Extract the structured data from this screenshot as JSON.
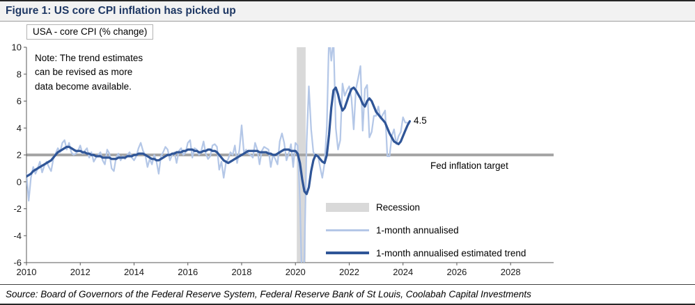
{
  "header": {
    "title": "Figure 1: US core CPI inflation has picked up"
  },
  "footer": {
    "source": "Source: Board of Governors of the Federal Reserve System, Federal Reserve Bank of St Louis, Coolabah Capital Investments"
  },
  "chart_data": {
    "type": "line",
    "title": "USA - core CPI (% change)",
    "note": "Note: The trend estimates\ncan be revised as more\ndata become available.",
    "end_label": "4.5",
    "x_axis": {
      "min": 2010,
      "max": 2029.6,
      "ticks": [
        2010,
        2012,
        2014,
        2016,
        2018,
        2020,
        2022,
        2024,
        2026,
        2028
      ]
    },
    "y_axis": {
      "min": -6,
      "max": 10,
      "ticks": [
        -6,
        -4,
        -2,
        0,
        2,
        4,
        6,
        8,
        10
      ]
    },
    "target_line": {
      "value": 2,
      "label": "Fed inflation target",
      "color": "#a6a6a6"
    },
    "recession": {
      "label": "Recession",
      "from": 2020.05,
      "to": 2020.38,
      "color": "#d9d9d9"
    },
    "legend": {
      "position": "inside-bottom-center",
      "items": [
        "Recession",
        "1-month annualised",
        "1-month annualised estimated trend"
      ]
    },
    "series": [
      {
        "name": "1-month annualised",
        "color": "#b4c7e7",
        "width": 2.25,
        "start": 2010.0,
        "step_months": 1,
        "values": [
          0.6,
          -1.4,
          0.3,
          1.1,
          0.6,
          1.0,
          1.5,
          0.7,
          1.2,
          1.5,
          1.1,
          0.8,
          1.7,
          2.1,
          2.5,
          2.2,
          2.9,
          3.1,
          2.4,
          2.9,
          2.2,
          2.0,
          2.1,
          2.3,
          2.7,
          2.1,
          2.3,
          2.5,
          1.8,
          2.2,
          1.5,
          1.8,
          2.0,
          2.2,
          1.6,
          1.3,
          2.4,
          2.1,
          1.0,
          0.8,
          1.8,
          2.1,
          1.6,
          1.9,
          1.7,
          2.0,
          2.2,
          1.8,
          1.6,
          1.9,
          2.5,
          2.9,
          2.3,
          2.0,
          1.1,
          1.7,
          1.3,
          2.0,
          1.5,
          0.6,
          1.9,
          2.2,
          2.6,
          2.4,
          1.6,
          2.0,
          2.2,
          1.4,
          2.3,
          2.5,
          2.0,
          2.2,
          2.9,
          3.1,
          1.8,
          2.5,
          2.4,
          2.0,
          2.3,
          3.0,
          2.1,
          1.7,
          1.9,
          2.7,
          2.8,
          2.6,
          0.9,
          1.5,
          0.3,
          1.4,
          1.7,
          2.2,
          2.0,
          2.7,
          1.4,
          2.4,
          4.2,
          2.2,
          2.4,
          2.1,
          2.0,
          1.8,
          2.9,
          2.4,
          1.3,
          2.3,
          2.6,
          2.5,
          2.4,
          1.1,
          2.0,
          1.7,
          1.3,
          3.0,
          3.6,
          2.9,
          1.6,
          2.1,
          2.8,
          1.1,
          2.9,
          2.7,
          -1.3,
          -8.2,
          -5.6,
          2.9,
          7.1,
          3.9,
          2.2,
          1.9,
          2.0,
          1.1,
          0.3,
          1.4,
          4.1,
          10.9,
          9.0,
          10.6,
          4.0,
          2.4,
          3.1,
          7.3,
          6.4,
          6.8,
          7.1,
          6.2,
          3.9,
          6.9,
          7.7,
          8.6,
          3.8,
          6.9,
          7.2,
          3.3,
          3.7,
          4.9,
          4.9,
          5.6,
          4.7,
          5.0,
          5.3,
          1.9,
          1.9,
          3.4,
          3.9,
          2.8,
          3.4,
          3.7,
          4.8,
          4.4,
          4.4
        ]
      },
      {
        "name": "1-month annualised estimated trend",
        "color": "#2f5597",
        "width": 3.25,
        "start": 2010.0,
        "step_months": 1,
        "values": [
          0.4,
          0.5,
          0.6,
          0.8,
          0.9,
          1.0,
          1.1,
          1.2,
          1.3,
          1.4,
          1.5,
          1.6,
          1.8,
          2.0,
          2.2,
          2.3,
          2.4,
          2.5,
          2.6,
          2.6,
          2.5,
          2.4,
          2.3,
          2.3,
          2.3,
          2.2,
          2.2,
          2.1,
          2.1,
          2.0,
          2.0,
          1.9,
          1.9,
          1.9,
          1.8,
          1.8,
          1.8,
          1.8,
          1.7,
          1.7,
          1.7,
          1.8,
          1.8,
          1.8,
          1.8,
          1.9,
          1.9,
          1.9,
          2.0,
          2.0,
          2.1,
          2.1,
          2.1,
          2.0,
          1.9,
          1.8,
          1.7,
          1.7,
          1.6,
          1.6,
          1.7,
          1.8,
          1.9,
          2.0,
          2.0,
          2.1,
          2.1,
          2.2,
          2.2,
          2.2,
          2.3,
          2.3,
          2.4,
          2.4,
          2.4,
          2.3,
          2.3,
          2.2,
          2.2,
          2.3,
          2.3,
          2.4,
          2.4,
          2.3,
          2.3,
          2.2,
          2.0,
          1.8,
          1.6,
          1.5,
          1.4,
          1.5,
          1.6,
          1.7,
          1.8,
          1.9,
          2.0,
          2.1,
          2.2,
          2.3,
          2.3,
          2.3,
          2.3,
          2.3,
          2.2,
          2.2,
          2.2,
          2.2,
          2.1,
          2.1,
          2.0,
          2.0,
          2.1,
          2.2,
          2.3,
          2.4,
          2.4,
          2.4,
          2.3,
          2.3,
          2.3,
          2.1,
          1.4,
          0.2,
          -0.7,
          -0.9,
          -0.4,
          0.8,
          1.6,
          2.0,
          1.9,
          1.7,
          1.5,
          1.4,
          2.0,
          3.5,
          5.5,
          6.8,
          7.0,
          6.5,
          5.8,
          5.3,
          5.5,
          6.0,
          6.5,
          6.9,
          7.0,
          6.8,
          6.5,
          6.2,
          5.8,
          5.6,
          6.0,
          6.2,
          6.0,
          5.6,
          5.2,
          5.0,
          4.8,
          4.6,
          4.4,
          4.0,
          3.6,
          3.3,
          3.0,
          2.9,
          2.8,
          3.0,
          3.4,
          3.8,
          4.2,
          4.5
        ]
      }
    ]
  }
}
